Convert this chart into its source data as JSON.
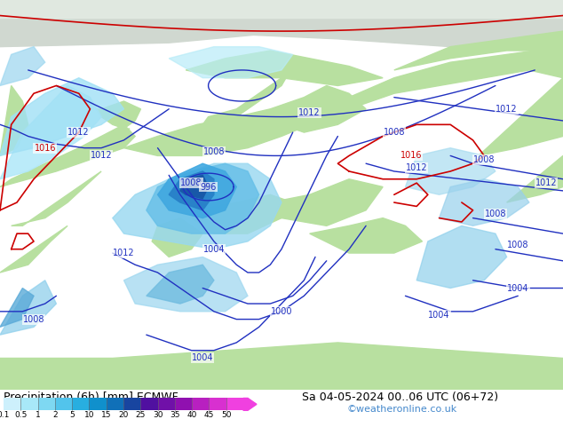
{
  "title_left": "Precipitation (6h) [mm] ECMWF",
  "title_right": "Sa 04-05-2024 00..06 UTC (06+72)",
  "watermark": "©weatheronline.co.uk",
  "colorbar_values": [
    0.1,
    0.5,
    1,
    2,
    5,
    10,
    15,
    20,
    25,
    30,
    35,
    40,
    45,
    50
  ],
  "colorbar_colors": [
    "#cdf0fc",
    "#a8e8f8",
    "#7ed8f2",
    "#52c4ec",
    "#28aee0",
    "#1090cc",
    "#1070b8",
    "#1845a0",
    "#5010a0",
    "#7010a8",
    "#9010b0",
    "#b820c0",
    "#d830d0",
    "#f040e0"
  ],
  "bg_color": "#ffffff",
  "land_color": "#b8e0a0",
  "sea_color": "#c8eef8",
  "prec_light": "#a8dcf0",
  "prec_mid": "#70bce0",
  "prec_dark": "#4090c8",
  "prec_deep": "#2060a8",
  "contour_blue": "#2030c0",
  "contour_red": "#cc0000",
  "watermark_color": "#4488cc",
  "left_label_color": "#000000",
  "right_label_color": "#000000",
  "font_size_title": 9,
  "font_size_watermark": 8,
  "font_size_label": 7
}
